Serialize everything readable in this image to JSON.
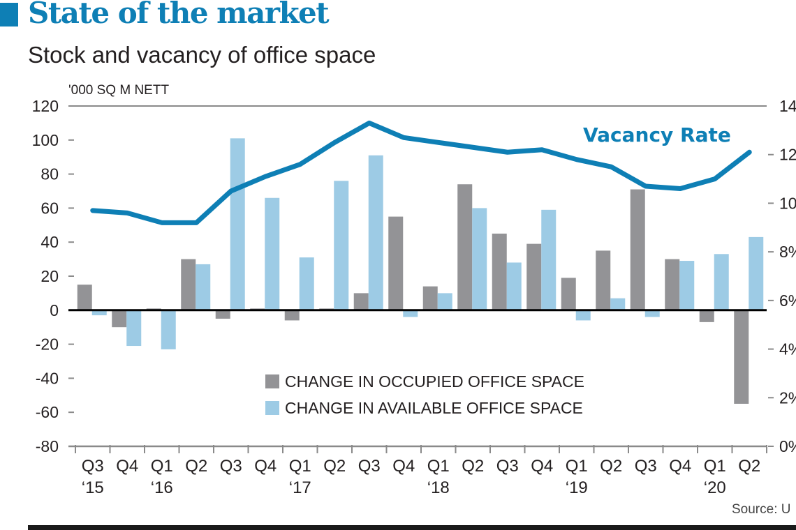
{
  "header": {
    "title": "State of the market",
    "subtitle": "Stock and vacancy of office space"
  },
  "source": "Source: U",
  "colors": {
    "title": "#0e7fb5",
    "vacancy_line": "#0e7fb5",
    "occupied": "#939396",
    "available": "#9dcbe5",
    "axis": "#8a8a8a",
    "zero_line": "#000000"
  },
  "chart_data": {
    "type": "bar+line",
    "title": "State of the market",
    "subtitle": "Stock and vacancy of office space",
    "ylabel": "'000 SQ M NETT",
    "ylim": [
      -80,
      120
    ],
    "yticks": [
      "120",
      "100",
      "80",
      "60",
      "40",
      "20",
      "0",
      "-20",
      "-40",
      "-60",
      "-80"
    ],
    "y2lim": [
      0,
      14
    ],
    "y2ticks": [
      "14",
      "12",
      "10",
      "8%",
      "6%",
      "4%",
      "2%",
      "0%"
    ],
    "categories": [
      "Q3",
      "Q4",
      "Q1",
      "Q2",
      "Q3",
      "Q4",
      "Q1",
      "Q2",
      "Q3",
      "Q4",
      "Q1",
      "Q2",
      "Q3",
      "Q4",
      "Q1",
      "Q2",
      "Q3",
      "Q4",
      "Q1",
      "Q2"
    ],
    "year_labels": [
      "'15",
      "",
      "'16",
      "",
      "",
      "",
      "'17",
      "",
      "",
      "",
      "'18",
      "",
      "",
      "",
      "'19",
      "",
      "",
      "",
      "'20",
      ""
    ],
    "series": [
      {
        "name": "CHANGE IN OCCUPIED OFFICE SPACE",
        "type": "bar",
        "axis": "left",
        "values": [
          15,
          -10,
          1,
          30,
          -5,
          1,
          -6,
          1,
          10,
          55,
          14,
          74,
          45,
          39,
          19,
          35,
          71,
          30,
          -7,
          -55
        ]
      },
      {
        "name": "CHANGE IN AVAILABLE OFFICE SPACE",
        "type": "bar",
        "axis": "left",
        "values": [
          -3,
          -21,
          -23,
          27,
          101,
          66,
          31,
          76,
          91,
          -4,
          10,
          60,
          28,
          59,
          -6,
          7,
          -4,
          29,
          33,
          43
        ]
      },
      {
        "name": "Vacancy Rate",
        "type": "line",
        "axis": "right",
        "unit": "%",
        "values": [
          9.7,
          9.6,
          9.2,
          9.2,
          10.5,
          11.1,
          11.6,
          12.5,
          13.3,
          12.7,
          12.5,
          12.3,
          12.1,
          12.2,
          11.8,
          11.5,
          10.7,
          10.6,
          11.0,
          12.1
        ]
      }
    ],
    "line_label": "Vacancy Rate",
    "legend": [
      "CHANGE IN OCCUPIED OFFICE SPACE",
      "CHANGE IN AVAILABLE OFFICE SPACE"
    ],
    "legend_position": "bottom-center inside plot",
    "grid": false
  }
}
